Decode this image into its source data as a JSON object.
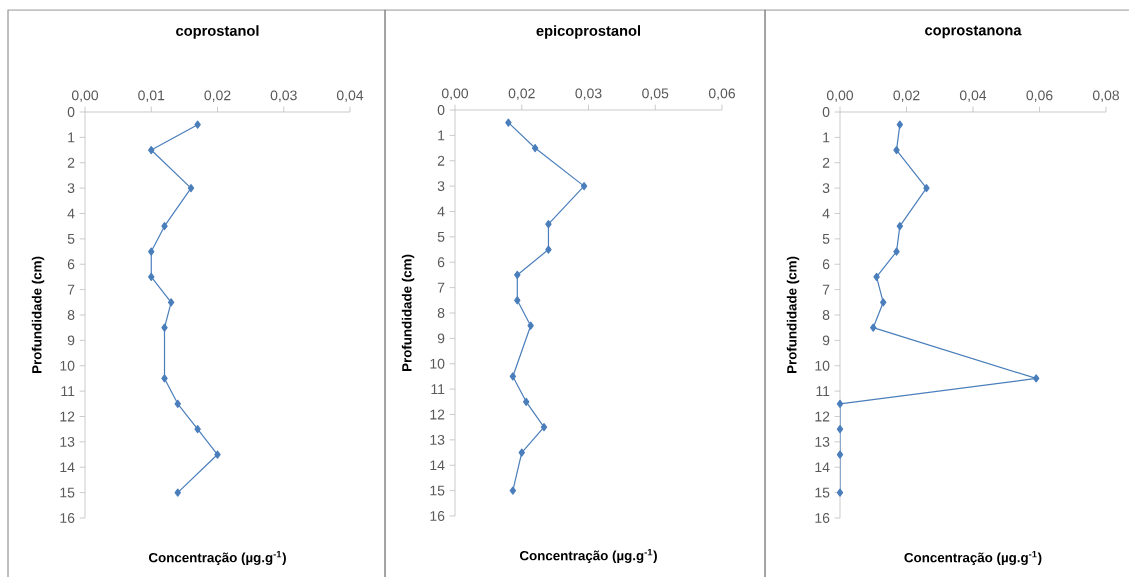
{
  "chart_data": [
    {
      "type": "line",
      "title": "coprostanol",
      "xlabel": "Concentração (µg.g$^{-1}$)",
      "ylabel": "Profundidade (cm)",
      "marker": "diamond",
      "x": [
        0.017,
        0.01,
        0.016,
        0.012,
        0.01,
        0.01,
        0.013,
        0.012,
        0.012,
        0.014,
        0.017,
        0.02,
        0.014
      ],
      "series": [
        {
          "color": "#4a7ebb",
          "values": [
            0.5,
            1.5,
            3,
            4.5,
            5.5,
            6.5,
            7.5,
            8.5,
            10.5,
            11.5,
            12.5,
            13.5,
            15
          ]
        }
      ],
      "xlim": [
        0,
        0.04
      ],
      "ylim": [
        16,
        0
      ],
      "xticks": [
        {
          "value": 0,
          "label": "0,00"
        },
        {
          "value": 0.01,
          "label": "0,01"
        },
        {
          "value": 0.02,
          "label": "0,02"
        },
        {
          "value": 0.03,
          "label": "0,03"
        },
        {
          "value": 0.04,
          "label": "0,04"
        }
      ],
      "yticks": [
        0,
        1,
        2,
        3,
        4,
        5,
        6,
        7,
        8,
        9,
        10,
        11,
        12,
        13,
        14,
        15,
        16
      ]
    },
    {
      "type": "line",
      "title": "epicoprostanol",
      "xlabel": "Concentração (µg.g$^{-1}$)",
      "ylabel": "Profundidade (cm)",
      "marker": "diamond",
      "x": [
        0.012,
        0.018,
        0.029,
        0.021,
        0.021,
        0.014,
        0.014,
        0.017,
        0.013,
        0.016,
        0.02,
        0.015,
        0.013
      ],
      "series": [
        {
          "color": "#4a7ebb",
          "values": [
            0.5,
            1.5,
            3,
            4.5,
            5.5,
            6.5,
            7.5,
            8.5,
            10.5,
            11.5,
            12.5,
            13.5,
            15
          ]
        }
      ],
      "xlim": [
        0,
        0.06
      ],
      "ylim": [
        16,
        0
      ],
      "xticks": [
        {
          "value": 0,
          "label": "0,00"
        },
        {
          "value": 0.015,
          "label": "0,02"
        },
        {
          "value": 0.03,
          "label": "0,03"
        },
        {
          "value": 0.045,
          "label": "0,05"
        },
        {
          "value": 0.06,
          "label": "0,06"
        }
      ],
      "yticks": [
        0,
        1,
        2,
        3,
        4,
        5,
        6,
        7,
        8,
        9,
        10,
        11,
        12,
        13,
        14,
        15,
        16
      ]
    },
    {
      "type": "line",
      "title": "coprostanona",
      "xlabel": "Concentração (µg.g$^{-1}$)",
      "ylabel": "Profundidade (cm)",
      "marker": "diamond",
      "x": [
        0.018,
        0.017,
        0.026,
        0.018,
        0.017,
        0.011,
        0.013,
        0.01,
        0.059,
        0,
        0,
        0,
        0
      ],
      "series": [
        {
          "color": "#4a7ebb",
          "values": [
            0.5,
            1.5,
            3,
            4.5,
            5.5,
            6.5,
            7.5,
            8.5,
            10.5,
            11.5,
            12.5,
            13.5,
            15
          ]
        }
      ],
      "xlim": [
        0,
        0.08
      ],
      "ylim": [
        16,
        0
      ],
      "xticks": [
        {
          "value": 0,
          "label": "0,00"
        },
        {
          "value": 0.02,
          "label": "0,02"
        },
        {
          "value": 0.04,
          "label": "0,04"
        },
        {
          "value": 0.06,
          "label": "0,06"
        },
        {
          "value": 0.08,
          "label": "0,08"
        }
      ],
      "yticks": [
        0,
        1,
        2,
        3,
        4,
        5,
        6,
        7,
        8,
        9,
        10,
        11,
        12,
        13,
        14,
        15,
        16
      ]
    }
  ]
}
